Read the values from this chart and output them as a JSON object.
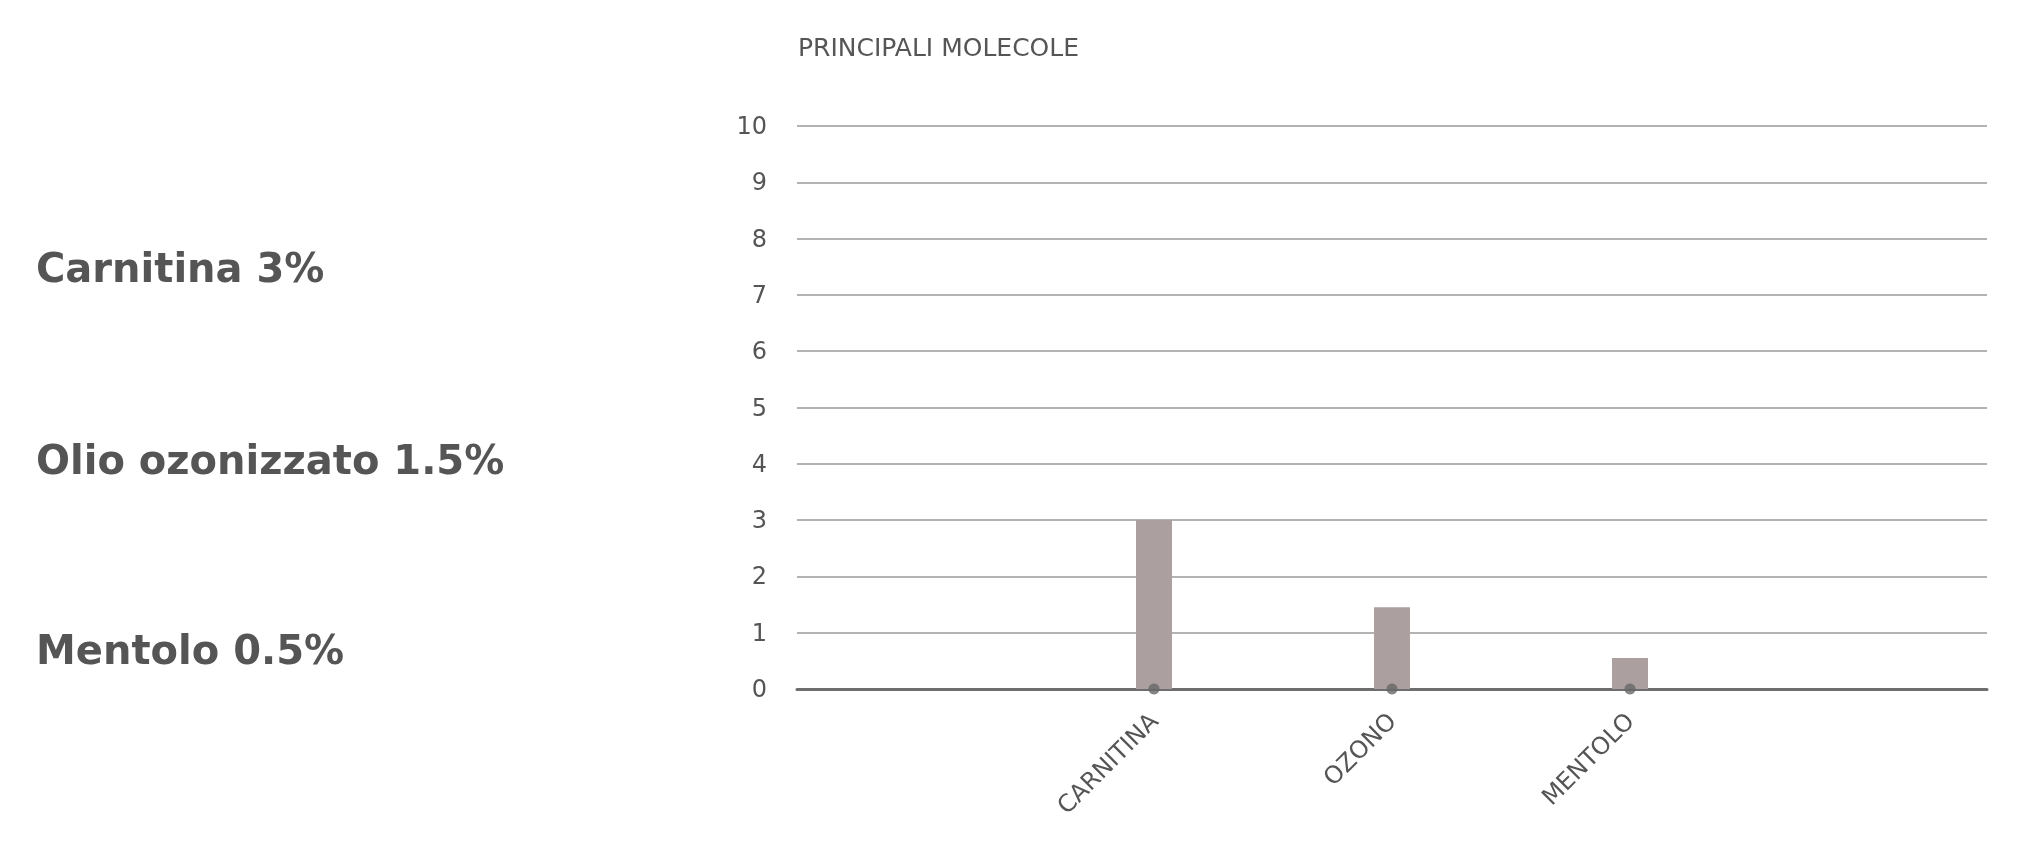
{
  "chart_data": {
    "type": "bar",
    "title": "PRINCIPALI MOLECOLE",
    "categories": [
      null,
      "CARNITINA",
      "OZONO",
      "MENTOLO",
      null
    ],
    "series": [
      {
        "color": "#ab9f9f",
        "values": [
          null,
          3,
          1.45,
          0.55,
          null
        ]
      },
      {
        "type": "scatter",
        "color": "#666666",
        "values": [
          null,
          0,
          0,
          0,
          null
        ]
      }
    ],
    "marker": "circle",
    "ylim": [
      0,
      10
    ],
    "yticks": [
      0,
      1,
      2,
      3,
      4,
      5,
      6,
      7,
      8,
      9,
      10
    ],
    "grid": "y",
    "annotations": [
      "Carnitina 3%",
      "Olio ozonizzato 1.5%",
      "Mentolo 0.5%"
    ]
  }
}
